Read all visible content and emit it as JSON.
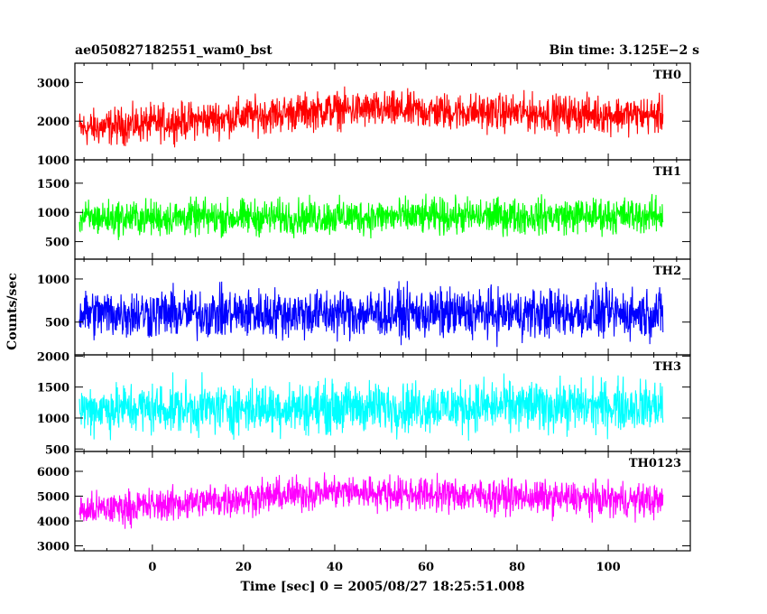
{
  "header": {
    "title": "ae050827182551_wam0_bst",
    "bin_time": "Bin time: 3.125E−2 s"
  },
  "axes": {
    "xlabel": "Time [sec] 0 = 2005/08/27 18:25:51.008",
    "ylabel": "Counts/sec"
  },
  "chart_data": {
    "type": "line",
    "title": "ae050827182551_wam0_bst",
    "subtitle": "Bin time: 3.125E−2 s",
    "xlabel": "Time [sec] 0 = 2005/08/27 18:25:51.008",
    "ylabel": "Counts/sec",
    "xlim": [
      -17,
      118
    ],
    "xdata_range": [
      -16,
      112
    ],
    "xticks": [
      0,
      20,
      40,
      60,
      80,
      100
    ],
    "xtick_labels": [
      "0",
      "20",
      "40",
      "60",
      "80",
      "100"
    ],
    "grid": false,
    "panels": [
      {
        "name": "TH0",
        "color": "#ff0000",
        "ylim": [
          1000,
          3500
        ],
        "yticks": [
          1000,
          2000,
          3000
        ],
        "ytick_labels": [
          "1000",
          "2000",
          "3000"
        ],
        "series_trend": {
          "x": [
            -16,
            40,
            112
          ],
          "y": [
            1800,
            2300,
            2150
          ]
        },
        "noise_halfwidth": 700
      },
      {
        "name": "TH1",
        "color": "#00ff00",
        "ylim": [
          200,
          1900
        ],
        "yticks": [
          500,
          1000,
          1500
        ],
        "ytick_labels": [
          "500",
          "1000",
          "1500"
        ],
        "series_trend": {
          "x": [
            -16,
            112
          ],
          "y": [
            900,
            950
          ]
        },
        "noise_halfwidth": 450
      },
      {
        "name": "TH2",
        "color": "#0000ff",
        "ylim": [
          120,
          1230
        ],
        "yticks": [
          500,
          1000
        ],
        "ytick_labels": [
          "500",
          "1000"
        ],
        "series_trend": {
          "x": [
            -16,
            112
          ],
          "y": [
            600,
            600
          ]
        },
        "noise_halfwidth": 420
      },
      {
        "name": "TH3",
        "color": "#00ffff",
        "ylim": [
          460,
          2020
        ],
        "yticks": [
          500,
          1000,
          1500,
          2000
        ],
        "ytick_labels": [
          "500",
          "1000",
          "1500",
          "2000"
        ],
        "series_trend": {
          "x": [
            -16,
            112
          ],
          "y": [
            1150,
            1200
          ]
        },
        "noise_halfwidth": 600
      },
      {
        "name": "TH0123",
        "color": "#ff00ff",
        "ylim": [
          2800,
          6800
        ],
        "yticks": [
          3000,
          4000,
          5000,
          6000
        ],
        "ytick_labels": [
          "3000",
          "4000",
          "5000",
          "6000"
        ],
        "series_trend": {
          "x": [
            -16,
            40,
            112
          ],
          "y": [
            4400,
            5200,
            4800
          ]
        },
        "noise_halfwidth": 1000
      }
    ]
  }
}
